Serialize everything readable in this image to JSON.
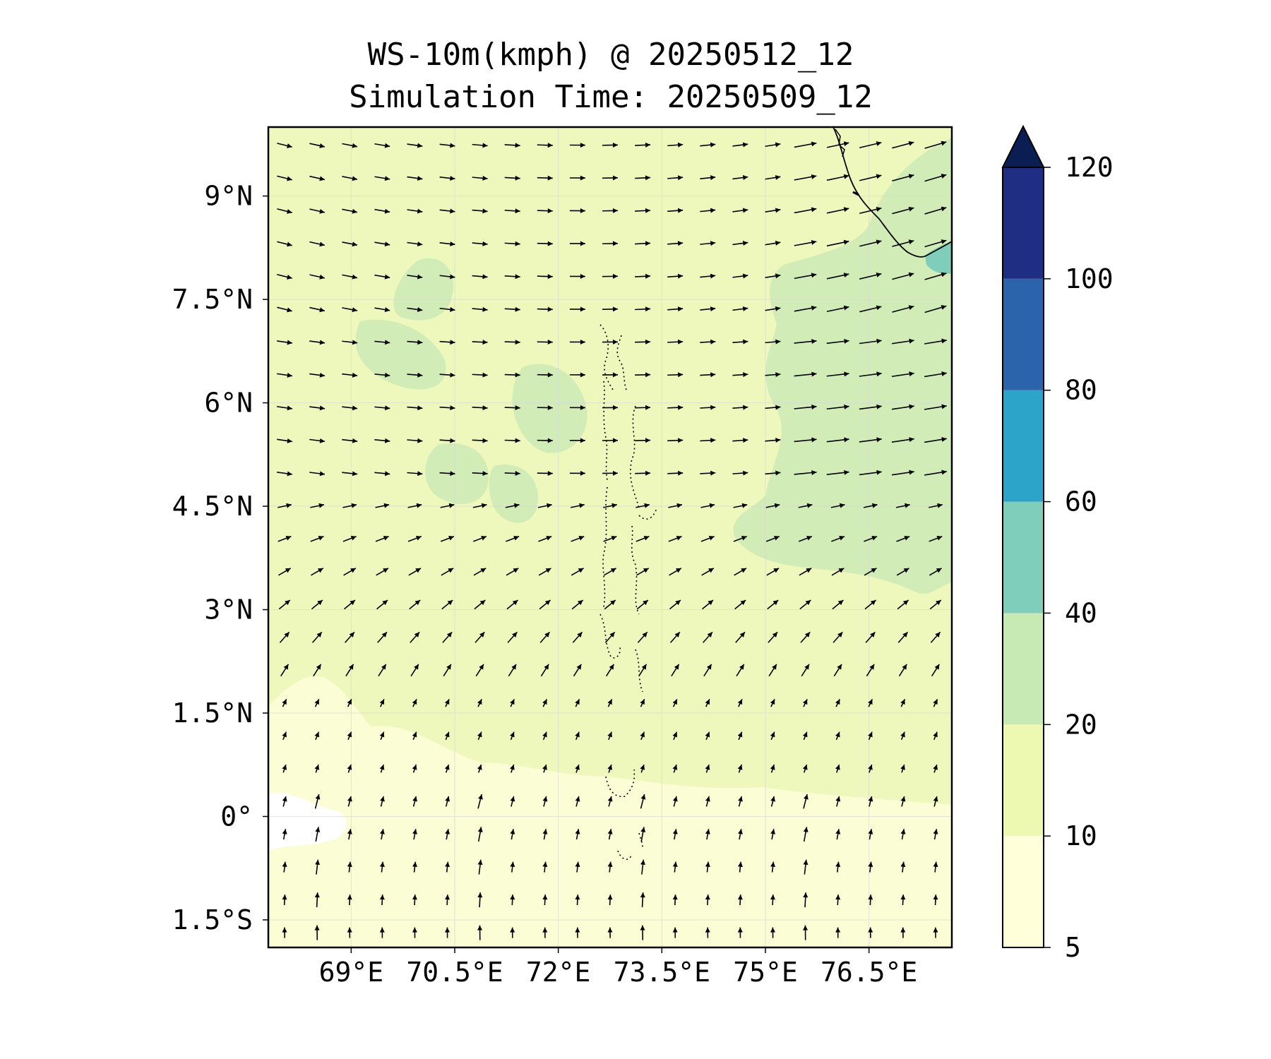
{
  "title": {
    "line1": "WS-10m(kmph) @ 20250512_12",
    "line2": "Simulation Time: 20250509_12"
  },
  "map": {
    "lat_range": [
      -1.9,
      10.0
    ],
    "lon_range": [
      67.8,
      77.7
    ],
    "lat_ticks": [
      {
        "value": 9.0,
        "label": "9°N"
      },
      {
        "value": 7.5,
        "label": "7.5°N"
      },
      {
        "value": 6.0,
        "label": "6°N"
      },
      {
        "value": 4.5,
        "label": "4.5°N"
      },
      {
        "value": 3.0,
        "label": "3°N"
      },
      {
        "value": 1.5,
        "label": "1.5°N"
      },
      {
        "value": 0.0,
        "label": "0°"
      },
      {
        "value": -1.5,
        "label": "1.5°S"
      }
    ],
    "lon_ticks": [
      {
        "value": 69.0,
        "label": "69°E"
      },
      {
        "value": 70.5,
        "label": "70.5°E"
      },
      {
        "value": 72.0,
        "label": "72°E"
      },
      {
        "value": 73.5,
        "label": "73.5°E"
      },
      {
        "value": 75.0,
        "label": "75°E"
      },
      {
        "value": 76.5,
        "label": "76.5°E"
      }
    ],
    "grid": true,
    "wind_vectors": true,
    "coastline": "Sri Lanka south-west coast (top-right corner)",
    "islands": "Maldives atoll outlines (dotted)"
  },
  "colorbar": {
    "extend": "max",
    "levels": [
      {
        "from": 5,
        "to": 10,
        "color": "#ffffd9"
      },
      {
        "from": 10,
        "to": 20,
        "color": "#edf8b1"
      },
      {
        "from": 20,
        "to": 40,
        "color": "#c7e9b4"
      },
      {
        "from": 40,
        "to": 60,
        "color": "#7fcdbb"
      },
      {
        "from": 60,
        "to": 80,
        "color": "#2ca3c8"
      },
      {
        "from": 80,
        "to": 100,
        "color": "#2c64ac"
      },
      {
        "from": 100,
        "to": 120,
        "color": "#1f2e82"
      }
    ],
    "extend_color": "#0b1e54",
    "tick_labels": [
      "5",
      "10",
      "20",
      "40",
      "60",
      "80",
      "100",
      "120"
    ]
  }
}
